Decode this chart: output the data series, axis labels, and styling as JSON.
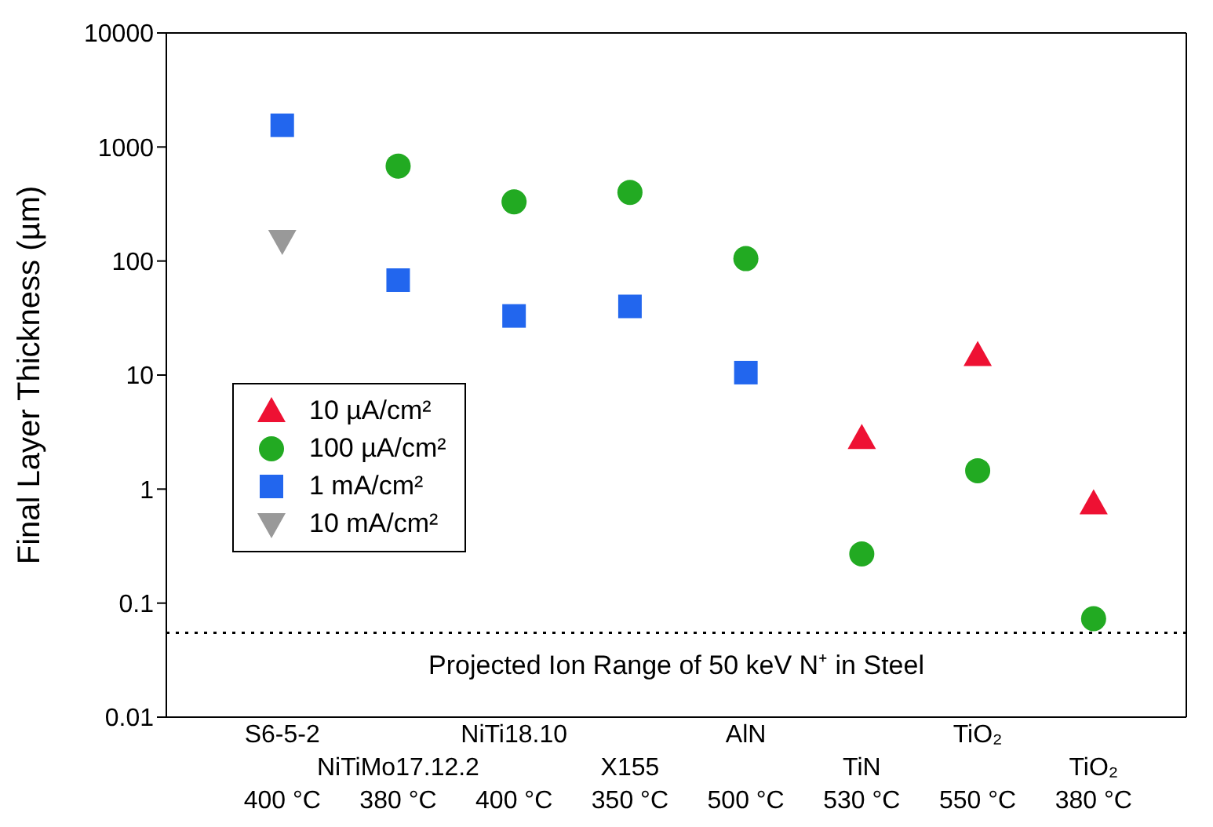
{
  "chart_data": {
    "type": "scatter",
    "ylabel": "Final Layer Thickness (µm)",
    "categories": [
      "S6-5-2\n400 °C",
      "NiTiMo17.12.2\n380 °C",
      "NiTi18.10\n400 °C",
      "X155\n350 °C",
      "AlN\n500 °C",
      "TiN\n530 °C",
      "TiO₂\n550 °C",
      "TiO₂\n380 °C"
    ],
    "series": [
      {
        "name": "10 µA/cm²",
        "color": "#ee1133",
        "marker": "triangle",
        "values": [
          null,
          null,
          null,
          null,
          null,
          2.8,
          15,
          0.75
        ]
      },
      {
        "name": "100 µA/cm²",
        "color": "#22aa22",
        "marker": "circle",
        "values": [
          null,
          680,
          330,
          400,
          105,
          0.27,
          1.45,
          0.073
        ]
      },
      {
        "name": "1 mA/cm²",
        "color": "#2266ee",
        "marker": "square",
        "values": [
          1550,
          68,
          33,
          40,
          10.5,
          null,
          null,
          null
        ]
      },
      {
        "name": "10 mA/cm²",
        "color": "#999999",
        "marker": "triangle-down",
        "values": [
          150,
          null,
          null,
          null,
          null,
          null,
          null,
          null
        ]
      }
    ],
    "log": "y",
    "ylim": [
      0.01,
      10000
    ],
    "yticks": [
      0.01,
      0.1,
      1,
      10,
      100,
      1000,
      10000
    ],
    "grid": false,
    "legend": "left",
    "ref_lines": [
      {
        "axis": "y",
        "value": 0.055,
        "label": "Projected Ion Range of 50 keV N⁺ in Steel",
        "line_style": "dotted",
        "color": "#000000"
      }
    ]
  }
}
